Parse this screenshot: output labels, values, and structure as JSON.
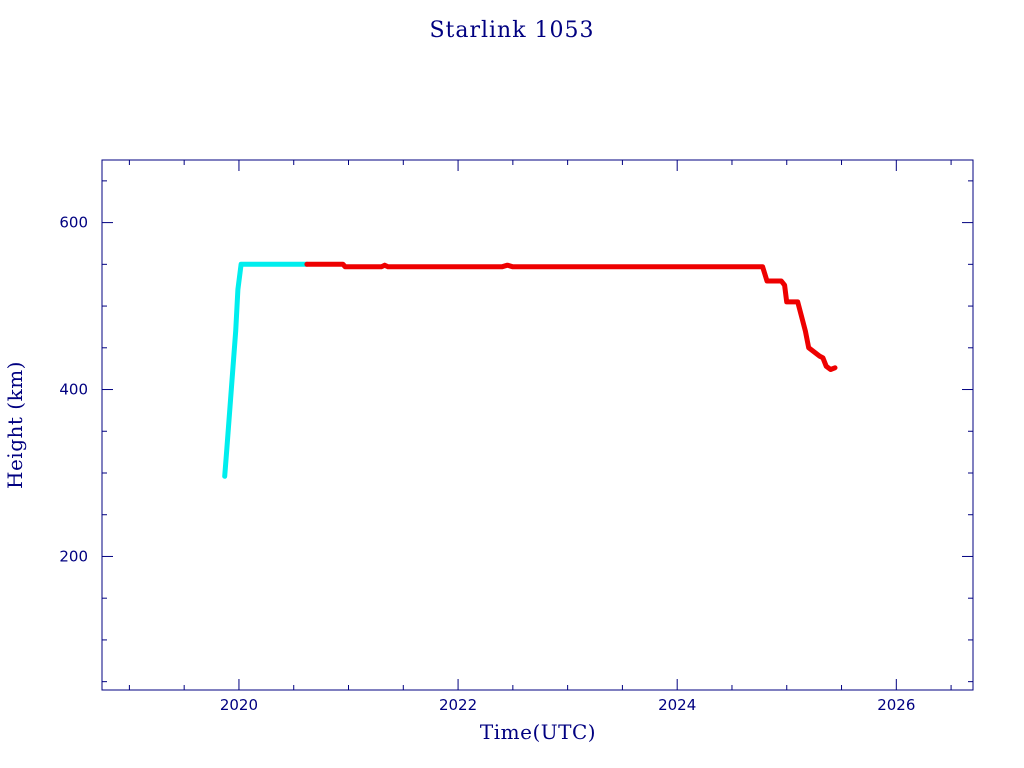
{
  "chart_data": {
    "type": "line",
    "title": "Starlink 1053",
    "xlabel": "Time(UTC)",
    "ylabel": "Height (km)",
    "x_unit": "year",
    "xlim": [
      2018.75,
      2026.7
    ],
    "ylim": [
      40,
      675
    ],
    "x_ticks": [
      2020,
      2022,
      2024,
      2026
    ],
    "x_tick_labels": [
      "2020",
      "2022",
      "2024",
      "2026"
    ],
    "x_minor_step": 0.5,
    "y_ticks": [
      200,
      400,
      600
    ],
    "y_tick_labels": [
      "200",
      "400",
      "600"
    ],
    "y_minor_step": 50,
    "grid": false,
    "legend": "none",
    "colors": {
      "axis": "#000080",
      "text": "#000080"
    },
    "series": [
      {
        "color": "#00eeee",
        "x": [
          2019.87,
          2019.89,
          2019.93,
          2019.97,
          2019.99,
          2020.02,
          2020.2,
          2020.4,
          2020.62
        ],
        "y": [
          296,
          330,
          400,
          470,
          520,
          550,
          550,
          550,
          550
        ]
      },
      {
        "color": "#ee0000",
        "x": [
          2020.62,
          2020.8,
          2020.95,
          2020.97,
          2021.2,
          2021.3,
          2021.33,
          2021.36,
          2021.6,
          2022.0,
          2022.4,
          2022.45,
          2022.5,
          2022.55,
          2023.0,
          2023.5,
          2024.0,
          2024.5,
          2024.78,
          2024.82,
          2024.85,
          2024.95,
          2024.98,
          2025.0,
          2025.1,
          2025.13,
          2025.17,
          2025.2,
          2025.3,
          2025.33,
          2025.36,
          2025.4,
          2025.44
        ],
        "y": [
          550,
          550,
          550,
          547,
          547,
          547,
          549,
          547,
          547,
          547,
          547,
          549,
          547,
          547,
          547,
          547,
          547,
          547,
          547,
          530,
          530,
          530,
          525,
          505,
          505,
          490,
          470,
          450,
          440,
          438,
          428,
          424,
          426
        ]
      }
    ]
  }
}
